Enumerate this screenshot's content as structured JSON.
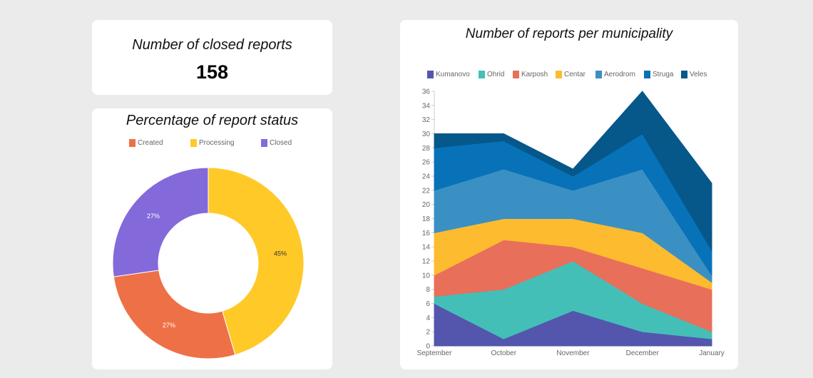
{
  "closed_card": {
    "title": "Number of closed reports",
    "value": "158"
  },
  "status_card": {
    "title": "Percentage of report status"
  },
  "area_card": {
    "title": "Number of reports per municipality"
  },
  "chart_data": [
    {
      "type": "pie",
      "variant": "doughnut",
      "labels": [
        "Created",
        "Processing",
        "Closed"
      ],
      "values": [
        27,
        45,
        27
      ],
      "data_labels": [
        "27%",
        "45%",
        "27%"
      ],
      "colors": [
        "#ee7047",
        "#ffc928",
        "#8469db"
      ],
      "legend": "top"
    },
    {
      "type": "area",
      "stacked": true,
      "categories": [
        "September",
        "October",
        "November",
        "December",
        "January"
      ],
      "ylim": [
        0,
        36
      ],
      "yticks": [
        0,
        2,
        4,
        6,
        8,
        10,
        12,
        14,
        16,
        18,
        20,
        22,
        24,
        26,
        28,
        30,
        32,
        34,
        36
      ],
      "legend": "top",
      "grid": false,
      "series": [
        {
          "name": "Kumanovo",
          "color": "#5455ac",
          "values": [
            6,
            1,
            5,
            2,
            1
          ]
        },
        {
          "name": "Ohrid",
          "color": "#43bfb8",
          "values": [
            1,
            7,
            7,
            4,
            1
          ]
        },
        {
          "name": "Karposh",
          "color": "#e86f5a",
          "values": [
            3,
            7,
            2,
            5,
            6
          ]
        },
        {
          "name": "Centar",
          "color": "#fdbb30",
          "values": [
            6,
            3,
            4,
            5,
            1
          ]
        },
        {
          "name": "Aerodrom",
          "color": "#3a90c3",
          "values": [
            6,
            7,
            4,
            9,
            1
          ]
        },
        {
          "name": "Struga",
          "color": "#0872b8",
          "values": [
            6,
            4,
            2,
            5,
            3.5
          ]
        },
        {
          "name": "Veles",
          "color": "#06578a",
          "values": [
            2,
            1,
            1,
            6,
            9.5
          ]
        }
      ]
    }
  ]
}
